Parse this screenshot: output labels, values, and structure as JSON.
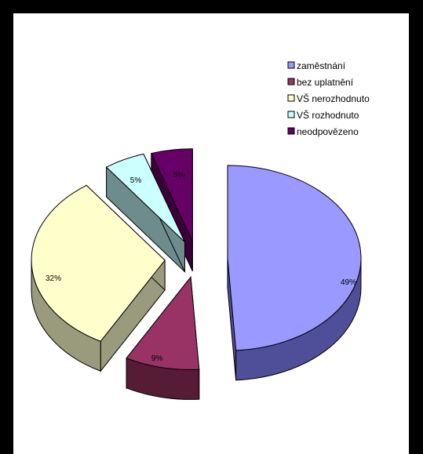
{
  "chart_data": {
    "type": "pie",
    "style": "3d-exploded",
    "categories": [
      "zaměstnání",
      "bez uplatnění",
      "VŠ nerozhodnuto",
      "VŠ rozhodnuto",
      "neodpovězeno"
    ],
    "values": [
      49,
      9,
      32,
      5,
      5
    ],
    "data_labels": [
      "49%",
      "9%",
      "32%",
      "5%",
      "5%"
    ],
    "colors": [
      "#9999ff",
      "#993366",
      "#ffffcc",
      "#ccffff",
      "#660066"
    ],
    "side_colors": [
      "#4f4f99",
      "#561c36",
      "#9a9a7c",
      "#6f8c8c",
      "#3a003a"
    ],
    "title": "",
    "legend_position": "right-top"
  }
}
